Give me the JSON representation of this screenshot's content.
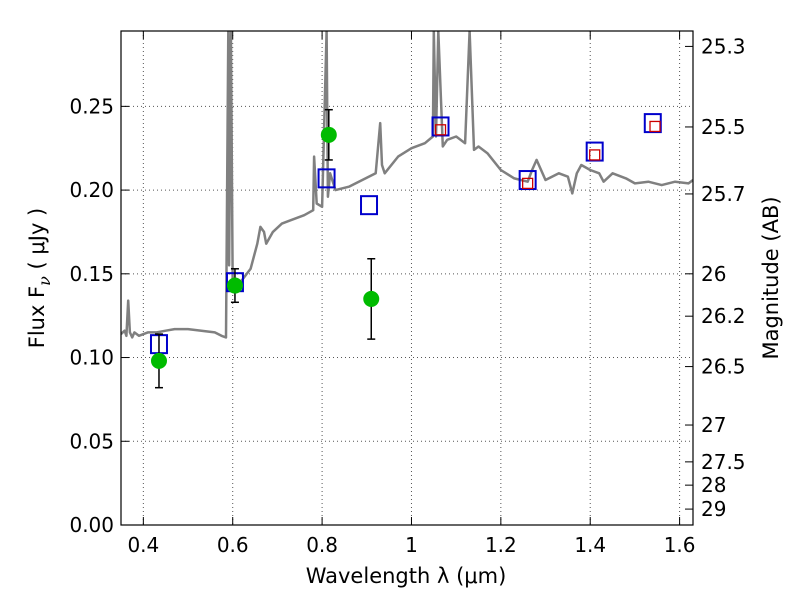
{
  "chart_data": {
    "type": "scatter",
    "xlabel": "Wavelength  λ (μm)",
    "ylabel": "Flux  F",
    "ylabel_sub": "ν",
    "ylabel_unit": "  ( μJy )",
    "y2label": "Magnitude (AB)",
    "xlim": [
      0.35,
      1.63
    ],
    "ylim": [
      0.0,
      0.295
    ],
    "grid": true,
    "x_ticks": [
      0.4,
      0.6,
      0.8,
      1.0,
      1.2,
      1.4,
      1.6
    ],
    "x_tick_labels": [
      "0.4",
      "0.6",
      "0.8",
      "1",
      "1.2",
      "1.4",
      "1.6"
    ],
    "y_ticks": [
      0.0,
      0.05,
      0.1,
      0.15,
      0.2,
      0.25
    ],
    "y_tick_labels": [
      "0.00",
      "0.05",
      "0.10",
      "0.15",
      "0.20",
      "0.25"
    ],
    "y2_ticks": [
      {
        "label": "25.3",
        "flux": 0.2858
      },
      {
        "label": "25.5",
        "flux": 0.2377
      },
      {
        "label": "25.7",
        "flux": 0.1977
      },
      {
        "label": "26",
        "flux": 0.15
      },
      {
        "label": "26.2",
        "flux": 0.1247
      },
      {
        "label": "26.5",
        "flux": 0.0946
      },
      {
        "label": "27",
        "flux": 0.0597
      },
      {
        "label": "27.5",
        "flux": 0.0377
      },
      {
        "label": "28",
        "flux": 0.0238
      },
      {
        "label": "29",
        "flux": 0.0095
      }
    ],
    "colors": {
      "spectrum": "#808080",
      "observed": "#00bb00",
      "model": "#0000cc",
      "inner": "#cc0000",
      "grid": "#555555"
    },
    "series": [
      {
        "kind": "spectrum",
        "x": [
          0.35,
          0.358,
          0.362,
          0.366,
          0.37,
          0.375,
          0.38,
          0.39,
          0.41,
          0.43,
          0.45,
          0.47,
          0.5,
          0.53,
          0.56,
          0.575,
          0.585,
          0.59,
          0.592,
          0.596,
          0.6,
          0.62,
          0.64,
          0.655,
          0.662,
          0.67,
          0.675,
          0.69,
          0.71,
          0.73,
          0.76,
          0.78,
          0.782,
          0.788,
          0.8,
          0.81,
          0.813,
          0.818,
          0.83,
          0.86,
          0.89,
          0.92,
          0.93,
          0.934,
          0.94,
          0.97,
          1.0,
          1.03,
          1.048,
          1.05,
          1.055,
          1.06,
          1.07,
          1.08,
          1.1,
          1.12,
          1.13,
          1.14,
          1.15,
          1.17,
          1.2,
          1.23,
          1.26,
          1.27,
          1.28,
          1.3,
          1.33,
          1.35,
          1.36,
          1.37,
          1.38,
          1.4,
          1.42,
          1.43,
          1.45,
          1.48,
          1.5,
          1.53,
          1.56,
          1.59,
          1.62,
          1.63
        ],
        "y": [
          0.114,
          0.116,
          0.113,
          0.134,
          0.115,
          0.112,
          0.115,
          0.113,
          0.115,
          0.115,
          0.116,
          0.117,
          0.117,
          0.116,
          0.115,
          0.113,
          0.112,
          0.295,
          0.155,
          0.295,
          0.143,
          0.146,
          0.153,
          0.168,
          0.178,
          0.175,
          0.168,
          0.175,
          0.18,
          0.182,
          0.185,
          0.188,
          0.22,
          0.192,
          0.19,
          0.295,
          0.196,
          0.21,
          0.2,
          0.202,
          0.206,
          0.21,
          0.24,
          0.215,
          0.21,
          0.22,
          0.225,
          0.228,
          0.232,
          0.295,
          0.232,
          0.295,
          0.226,
          0.23,
          0.232,
          0.228,
          0.295,
          0.224,
          0.226,
          0.222,
          0.212,
          0.207,
          0.205,
          0.212,
          0.218,
          0.206,
          0.21,
          0.208,
          0.198,
          0.21,
          0.215,
          0.212,
          0.21,
          0.205,
          0.21,
          0.207,
          0.204,
          0.205,
          0.203,
          0.205,
          0.204,
          0.206
        ]
      },
      {
        "kind": "observed",
        "x": [
          0.435,
          0.605,
          0.815,
          0.91
        ],
        "y": [
          0.098,
          0.143,
          0.233,
          0.135
        ],
        "err": [
          0.016,
          0.01,
          0.015,
          0.024
        ]
      },
      {
        "kind": "model",
        "x": [
          0.435,
          0.605,
          0.81,
          0.905,
          1.065,
          1.26,
          1.41,
          1.54
        ],
        "y": [
          0.108,
          0.145,
          0.207,
          0.191,
          0.238,
          0.206,
          0.223,
          0.24
        ]
      },
      {
        "kind": "inner",
        "x": [
          1.065,
          1.26,
          1.41,
          1.545
        ],
        "y": [
          0.236,
          0.204,
          0.221,
          0.238
        ]
      }
    ]
  }
}
